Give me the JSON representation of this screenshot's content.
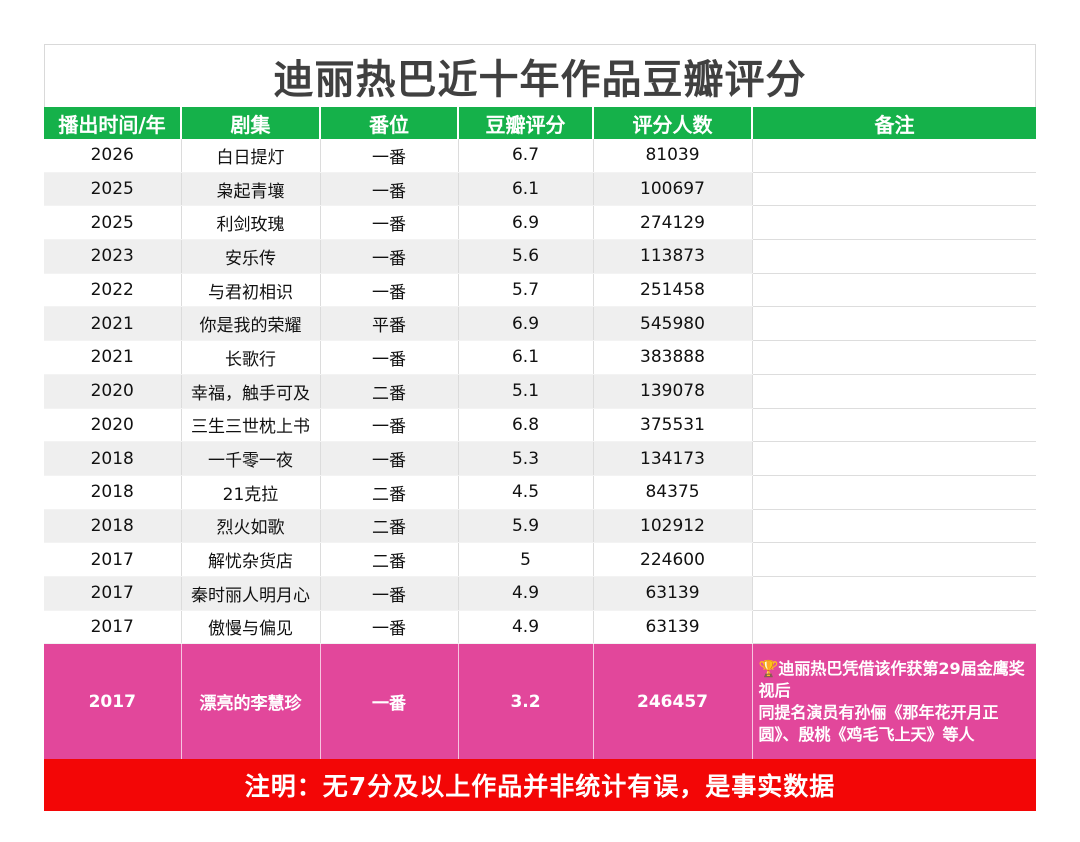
{
  "title": "迪丽热巴近十年作品豆瓣评分",
  "headers": [
    "播出时间/年",
    "剧集",
    "番位",
    "豆瓣评分",
    "评分人数",
    "备注"
  ],
  "rows": [
    {
      "year": "2026",
      "drama": "白日提灯",
      "role": "一番",
      "score": "6.7",
      "raters": "81039",
      "note": ""
    },
    {
      "year": "2025",
      "drama": "枭起青壤",
      "role": "一番",
      "score": "6.1",
      "raters": "100697",
      "note": ""
    },
    {
      "year": "2025",
      "drama": "利剑玫瑰",
      "role": "一番",
      "score": "6.9",
      "raters": "274129",
      "note": ""
    },
    {
      "year": "2023",
      "drama": "安乐传",
      "role": "一番",
      "score": "5.6",
      "raters": "113873",
      "note": ""
    },
    {
      "year": "2022",
      "drama": "与君初相识",
      "role": "一番",
      "score": "5.7",
      "raters": "251458",
      "note": ""
    },
    {
      "year": "2021",
      "drama": "你是我的荣耀",
      "role": "平番",
      "score": "6.9",
      "raters": "545980",
      "note": ""
    },
    {
      "year": "2021",
      "drama": "长歌行",
      "role": "一番",
      "score": "6.1",
      "raters": "383888",
      "note": ""
    },
    {
      "year": "2020",
      "drama": "幸福，触手可及",
      "role": "二番",
      "score": "5.1",
      "raters": "139078",
      "note": ""
    },
    {
      "year": "2020",
      "drama": "三生三世枕上书",
      "role": "一番",
      "score": "6.8",
      "raters": "375531",
      "note": ""
    },
    {
      "year": "2018",
      "drama": "一千零一夜",
      "role": "一番",
      "score": "5.3",
      "raters": "134173",
      "note": ""
    },
    {
      "year": "2018",
      "drama": "21克拉",
      "role": "二番",
      "score": "4.5",
      "raters": "84375",
      "note": ""
    },
    {
      "year": "2018",
      "drama": "烈火如歌",
      "role": "二番",
      "score": "5.9",
      "raters": "102912",
      "note": ""
    },
    {
      "year": "2017",
      "drama": "解忧杂货店",
      "role": "二番",
      "score": "5",
      "raters": "224600",
      "note": ""
    },
    {
      "year": "2017",
      "drama": "秦时丽人明月心",
      "role": "一番",
      "score": "4.9",
      "raters": "63139",
      "note": ""
    },
    {
      "year": "2017",
      "drama": "傲慢与偏见",
      "role": "一番",
      "score": "4.9",
      "raters": "63139",
      "note": ""
    }
  ],
  "highlight": {
    "year": "2017",
    "drama": "漂亮的李慧珍",
    "role": "一番",
    "score": "3.2",
    "raters": "246457",
    "note_line1": "迪丽热巴凭借该作获第29届金鹰奖视后",
    "note_line2": "同提名演员有孙俪《那年花开月正圆》、殷桃《鸡毛飞上天》等人",
    "note_icon": "trophy-icon"
  },
  "footer": "注明：无7分及以上作品并非统计有误，是事实数据",
  "colors": {
    "header_green": "#15b14a",
    "highlight_pink": "#e2479b",
    "footer_red": "#f30606",
    "title_gray": "#404040"
  }
}
